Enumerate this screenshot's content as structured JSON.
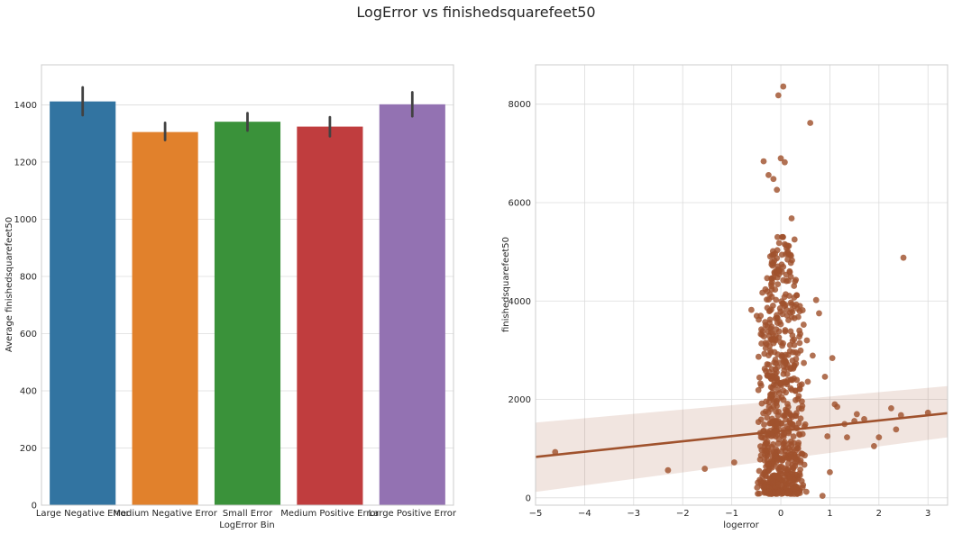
{
  "figure": {
    "title": "LogError vs finishedsquarefeet50"
  },
  "chart_data": [
    {
      "type": "bar",
      "title": "",
      "xlabel": "LogError Bin",
      "ylabel": "Average finishedsquarefeet50",
      "ylim": [
        0,
        1540
      ],
      "yticks": [
        0,
        200,
        400,
        600,
        800,
        1000,
        1200,
        1400
      ],
      "categories": [
        "Large Negative Error",
        "Medium Negative Error",
        "Small Error",
        "Medium Positive Error",
        "Large Positive Error"
      ],
      "values": [
        1412,
        1305,
        1341,
        1324,
        1402
      ],
      "ci_low": [
        1364,
        1277,
        1310,
        1290,
        1360
      ],
      "ci_high": [
        1461,
        1337,
        1371,
        1357,
        1444
      ],
      "colors": [
        "#3274a1",
        "#e1812c",
        "#3a923a",
        "#c03d3e",
        "#9372b2"
      ],
      "errorbar_color": "#424242",
      "grid": true
    },
    {
      "type": "scatter",
      "title": "",
      "xlabel": "logerror",
      "ylabel": "finishedsquarefeet50",
      "xlim": [
        -5,
        3.4
      ],
      "ylim": [
        -150,
        8800
      ],
      "xticks": [
        -5,
        -4,
        -3,
        -2,
        -1,
        0,
        1,
        2,
        3
      ],
      "yticks": [
        0,
        2000,
        4000,
        6000,
        8000
      ],
      "point_color": "#a0522d",
      "regression": {
        "x": [
          -5,
          3.4
        ],
        "y": [
          830,
          1720
        ]
      },
      "ci_band": {
        "x": [
          -5,
          3.4
        ],
        "low": [
          120,
          1230
        ],
        "high": [
          1530,
          2270
        ]
      },
      "outliers": [
        [
          -4.6,
          930
        ],
        [
          -2.3,
          560
        ],
        [
          -1.55,
          590
        ],
        [
          -0.95,
          720
        ],
        [
          -0.6,
          3820
        ],
        [
          -0.45,
          3620
        ],
        [
          -0.35,
          6840
        ],
        [
          -0.25,
          6560
        ],
        [
          -0.15,
          6480
        ],
        [
          -0.08,
          6260
        ],
        [
          -0.05,
          8180
        ],
        [
          0.0,
          6900
        ],
        [
          0.05,
          8360
        ],
        [
          0.08,
          6820
        ],
        [
          0.22,
          5680
        ],
        [
          0.28,
          5250
        ],
        [
          0.6,
          7620
        ],
        [
          0.55,
          2360
        ],
        [
          0.65,
          2890
        ],
        [
          0.72,
          4020
        ],
        [
          0.78,
          3750
        ],
        [
          0.9,
          2460
        ],
        [
          0.95,
          1250
        ],
        [
          1.0,
          520
        ],
        [
          1.05,
          2840
        ],
        [
          1.15,
          1850
        ],
        [
          1.3,
          1500
        ],
        [
          1.35,
          1230
        ],
        [
          1.5,
          1560
        ],
        [
          1.7,
          1600
        ],
        [
          1.9,
          1050
        ],
        [
          2.0,
          1230
        ],
        [
          2.25,
          1820
        ],
        [
          2.35,
          1390
        ],
        [
          2.45,
          1680
        ],
        [
          2.5,
          4880
        ],
        [
          3.0,
          1730
        ],
        [
          0.85,
          40
        ],
        [
          1.1,
          1900
        ],
        [
          1.55,
          1700
        ]
      ],
      "grid": true
    }
  ]
}
